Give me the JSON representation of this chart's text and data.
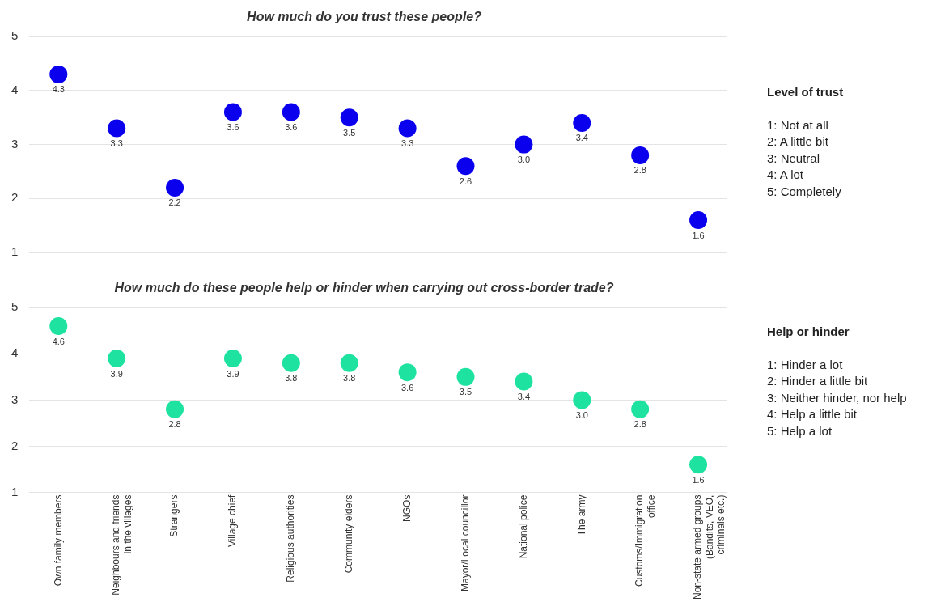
{
  "chart_data": [
    {
      "type": "scatter",
      "title": "How much do you trust these people?",
      "categories": [
        null,
        null,
        null,
        null,
        null,
        null,
        null,
        null,
        null,
        null,
        null,
        null
      ],
      "series": [
        {
          "color": "#0a00ee",
          "values": [
            4.3,
            3.3,
            2.2,
            3.6,
            3.6,
            3.5,
            3.3,
            2.6,
            3.0,
            3.4,
            2.8,
            1.6
          ],
          "value_labels": [
            "4.3",
            "3.3",
            "2.2",
            "3.6",
            "3.6",
            "3.5",
            "3.3",
            "2.6",
            "3.0",
            "3.4",
            "2.8",
            "1.6"
          ]
        }
      ],
      "ylim": [
        1,
        5
      ],
      "yticks": [
        1,
        2,
        3,
        4,
        5
      ],
      "grid": "y",
      "marker": "circle",
      "tick_labels": "y",
      "annotations": [
        "Level of trust",
        "1:  Not at all",
        "2: A little bit",
        "3: Neutral",
        "4: A lot",
        "5: Completely"
      ]
    },
    {
      "type": "scatter",
      "title": "How much do these people help or hinder when carrying out cross-border trade?",
      "categories": [
        "Own family members",
        "Neighbours and friends in the villages",
        "Strangers",
        "Village chief",
        "Religious authorities",
        "Community elders",
        "NGOs",
        "Mayor/Local councillor",
        "National police",
        "The army",
        "Customs/Immigration office",
        "Non-state armed groups (Bandits, VEO, criminals etc.)"
      ],
      "series": [
        {
          "color": "#1ee3a0",
          "values": [
            4.6,
            3.9,
            2.8,
            3.9,
            3.8,
            3.8,
            3.6,
            3.5,
            3.4,
            3.0,
            2.8,
            1.6
          ],
          "value_labels": [
            "4.6",
            "3.9",
            "2.8",
            "3.9",
            "3.8",
            "3.8",
            "3.6",
            "3.5",
            "3.4",
            "3.0",
            "2.8",
            "1.6"
          ]
        }
      ],
      "ylim": [
        1,
        5
      ],
      "yticks": [
        1,
        2,
        3,
        4,
        5
      ],
      "grid": "y",
      "marker": "circle",
      "annotations": [
        "Help or hinder",
        "1: Hinder a lot",
        "2: Hinder a little bit",
        "3: Neither hinder, nor help",
        "4: Help a little bit",
        "5: Help a lot"
      ]
    }
  ]
}
